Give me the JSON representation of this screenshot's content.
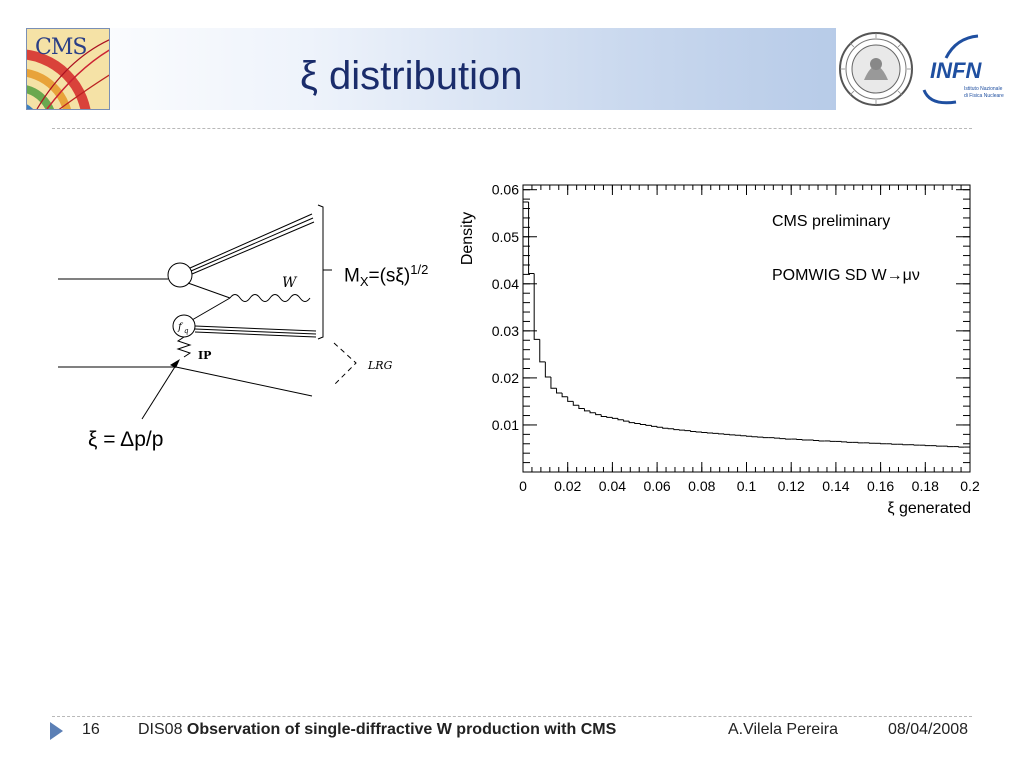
{
  "header": {
    "title": "ξ distribution",
    "cms_logo_text": "CMS",
    "infn_logo_text": "INFN",
    "infn_sub1": "Istituto Nazionale",
    "infn_sub2": "di Fisica Nucleare"
  },
  "diagram": {
    "w_label": "W",
    "fq_label": "f",
    "fq_sub": "q",
    "ip_label": "IP",
    "lrg_label": "LRG",
    "mx_main": "M",
    "mx_sub": "X",
    "mx_rest": "=(sξ)",
    "mx_sup": "1/2",
    "xi_eq": "ξ = Δp/p"
  },
  "chart_data": {
    "type": "histogram",
    "ylabel": "Density",
    "xlabel": "ξ generated",
    "annotations": [
      "CMS preliminary",
      "POMWIG SD W→μν"
    ],
    "xlim": [
      0,
      0.2
    ],
    "ylim": [
      0,
      0.061
    ],
    "x_ticks": [
      "0",
      "0.02",
      "0.04",
      "0.06",
      "0.08",
      "0.1",
      "0.12",
      "0.14",
      "0.16",
      "0.18",
      "0.2"
    ],
    "y_ticks": [
      "0.01",
      "0.02",
      "0.03",
      "0.04",
      "0.05",
      "0.06"
    ],
    "bin_width": 0.0025,
    "values": [
      0.0574,
      0.0422,
      0.0282,
      0.0234,
      0.0202,
      0.0178,
      0.0168,
      0.016,
      0.015,
      0.0142,
      0.0135,
      0.013,
      0.0126,
      0.0122,
      0.0118,
      0.0116,
      0.0114,
      0.0111,
      0.0108,
      0.0105,
      0.0103,
      0.0101,
      0.0099,
      0.0097,
      0.0095,
      0.0093,
      0.0092,
      0.009,
      0.0089,
      0.0088,
      0.0086,
      0.0085,
      0.0084,
      0.0083,
      0.0082,
      0.0081,
      0.008,
      0.0079,
      0.0078,
      0.0077,
      0.0076,
      0.0075,
      0.0074,
      0.0073,
      0.0073,
      0.0072,
      0.0071,
      0.007,
      0.007,
      0.0069,
      0.0068,
      0.0068,
      0.0067,
      0.0066,
      0.0066,
      0.0065,
      0.0065,
      0.0064,
      0.0063,
      0.0063,
      0.0062,
      0.0062,
      0.0061,
      0.0061,
      0.006,
      0.006,
      0.0059,
      0.0059,
      0.0058,
      0.0058,
      0.0057,
      0.0057,
      0.0056,
      0.0056,
      0.0055,
      0.0055,
      0.0054,
      0.0054,
      0.0053,
      0.0053
    ]
  },
  "footer": {
    "page_number": "16",
    "conference": "DIS08",
    "talk_title": "Observation of single-diffractive W production with CMS",
    "author": "A.Vilela Pereira",
    "date": "08/04/2008"
  }
}
